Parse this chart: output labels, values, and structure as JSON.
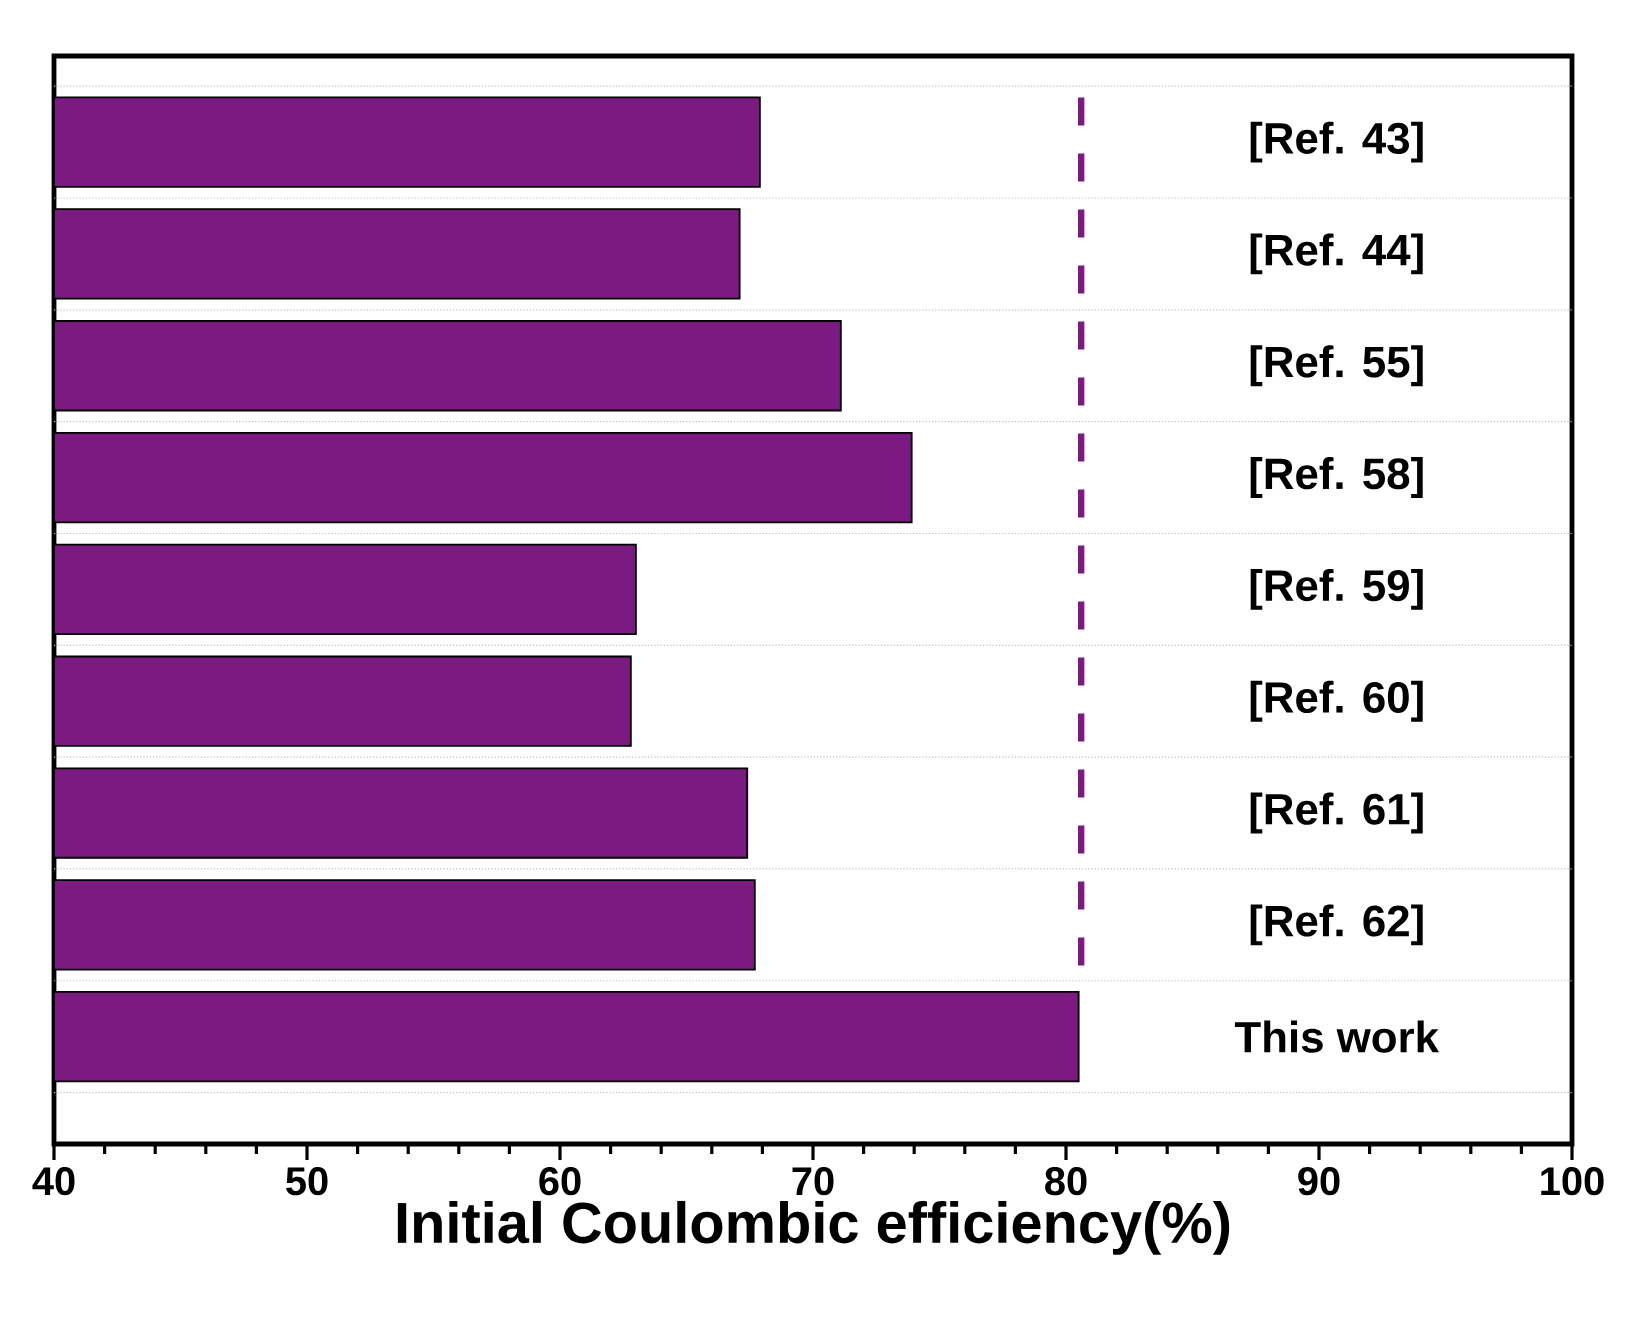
{
  "chart_data": {
    "type": "bar",
    "orientation": "horizontal",
    "xlabel": "Initial Coulombic efficiency(%)",
    "categories": [
      "[Ref. 43]",
      "[Ref. 44]",
      "[Ref. 55]",
      "[Ref. 58]",
      "[Ref. 59]",
      "[Ref. 60]",
      "[Ref. 61]",
      "[Ref. 62]",
      "This work"
    ],
    "values": [
      67.9,
      67.1,
      71.1,
      73.9,
      63.0,
      62.8,
      67.4,
      67.7,
      80.5
    ],
    "color": "#7b1a80",
    "xlim": [
      40,
      100
    ],
    "xticks": [
      40,
      50,
      60,
      70,
      80,
      90,
      100
    ],
    "grid": "y",
    "ref_lines": [
      {
        "axis": "x",
        "value": 80.6,
        "color": "#7b1a7f",
        "line_style": "dashed"
      }
    ]
  }
}
